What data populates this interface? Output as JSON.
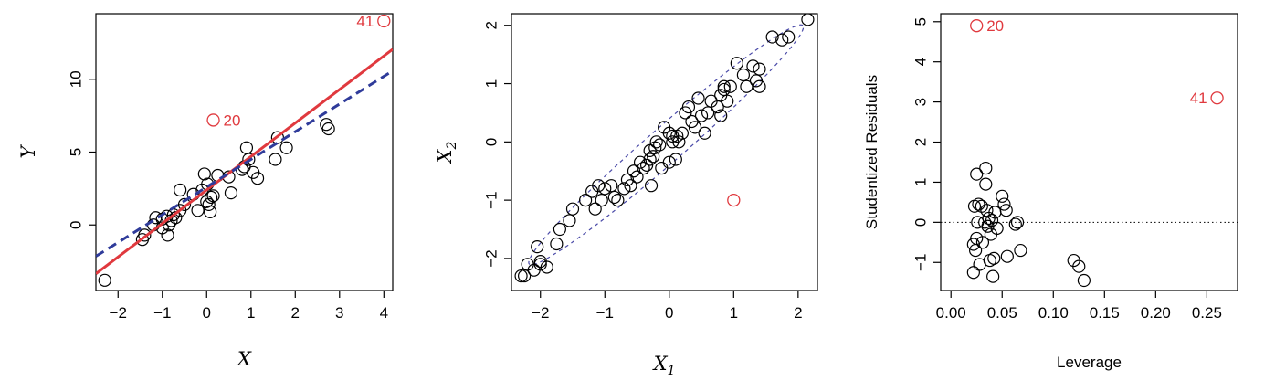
{
  "colors": {
    "points": "#000000",
    "outlier": "#e0393e",
    "fit_all": "#e0393e",
    "fit_without": "#2f3b9a",
    "ellipse": "#4a4aa8",
    "zero_line": "#000000"
  },
  "chart_data": [
    {
      "type": "scatter",
      "xlabel": "X",
      "ylabel": "Y",
      "xlim": [
        -2.5,
        4.2
      ],
      "ylim": [
        -4.5,
        14.5
      ],
      "xticks": [
        -2,
        -1,
        0,
        1,
        2,
        3,
        4
      ],
      "yticks": [
        0,
        5,
        10
      ],
      "points": [
        [
          -2.3,
          -3.8
        ],
        [
          -1.45,
          -1.0
        ],
        [
          -1.4,
          -0.7
        ],
        [
          -1.2,
          0.0
        ],
        [
          -1.15,
          0.5
        ],
        [
          -1.0,
          -0.2
        ],
        [
          -1.0,
          0.4
        ],
        [
          -0.9,
          0.6
        ],
        [
          -0.88,
          -0.7
        ],
        [
          -0.85,
          0.0
        ],
        [
          -0.8,
          0.3
        ],
        [
          -0.75,
          0.7
        ],
        [
          -0.7,
          0.5
        ],
        [
          -0.6,
          1.0
        ],
        [
          -0.6,
          2.4
        ],
        [
          -0.5,
          1.4
        ],
        [
          -0.3,
          2.1
        ],
        [
          -0.2,
          1.0
        ],
        [
          -0.1,
          2.4
        ],
        [
          -0.05,
          3.5
        ],
        [
          0.0,
          1.6
        ],
        [
          0.02,
          2.8
        ],
        [
          0.05,
          1.4
        ],
        [
          0.08,
          0.9
        ],
        [
          0.1,
          1.9
        ],
        [
          0.15,
          2.0
        ],
        [
          0.25,
          3.4
        ],
        [
          0.5,
          3.3
        ],
        [
          0.55,
          2.2
        ],
        [
          0.8,
          3.8
        ],
        [
          0.85,
          4.0
        ],
        [
          0.9,
          5.3
        ],
        [
          0.95,
          4.5
        ],
        [
          1.05,
          3.6
        ],
        [
          1.15,
          3.2
        ],
        [
          1.55,
          4.5
        ],
        [
          1.6,
          6.0
        ],
        [
          1.8,
          5.3
        ],
        [
          2.7,
          6.9
        ],
        [
          2.75,
          6.6
        ]
      ],
      "outliers": [
        {
          "label": "20",
          "x": 0.15,
          "y": 7.2
        },
        {
          "label": "41",
          "x": 4.0,
          "y": 14.0
        }
      ],
      "fit_lines": [
        {
          "style": "solid",
          "intercept": 2.4,
          "slope": 2.3
        },
        {
          "style": "dashed",
          "intercept": 2.6,
          "slope": 1.9
        }
      ]
    },
    {
      "type": "scatter",
      "xlabel": "X",
      "xlabel_sub": "1",
      "ylabel": "X",
      "ylabel_sub": "2",
      "xlim": [
        -2.45,
        2.3
      ],
      "ylim": [
        -2.55,
        2.2
      ],
      "xticks": [
        -2,
        -1,
        0,
        1,
        2
      ],
      "yticks": [
        -2,
        -1,
        0,
        1,
        2
      ],
      "points": [
        [
          -2.3,
          -2.3
        ],
        [
          -2.25,
          -2.3
        ],
        [
          -2.2,
          -2.1
        ],
        [
          -2.1,
          -2.2
        ],
        [
          -2.05,
          -1.8
        ],
        [
          -2.0,
          -2.05
        ],
        [
          -2.0,
          -2.1
        ],
        [
          -1.9,
          -2.15
        ],
        [
          -1.75,
          -1.75
        ],
        [
          -1.7,
          -1.5
        ],
        [
          -1.55,
          -1.35
        ],
        [
          -1.5,
          -1.15
        ],
        [
          -1.3,
          -1.0
        ],
        [
          -1.2,
          -0.85
        ],
        [
          -1.15,
          -1.15
        ],
        [
          -1.1,
          -0.75
        ],
        [
          -1.05,
          -1.0
        ],
        [
          -1.0,
          -0.8
        ],
        [
          -0.9,
          -0.75
        ],
        [
          -0.85,
          -0.95
        ],
        [
          -0.8,
          -1.0
        ],
        [
          -0.7,
          -0.8
        ],
        [
          -0.65,
          -0.65
        ],
        [
          -0.6,
          -0.75
        ],
        [
          -0.55,
          -0.5
        ],
        [
          -0.5,
          -0.6
        ],
        [
          -0.45,
          -0.35
        ],
        [
          -0.4,
          -0.45
        ],
        [
          -0.35,
          -0.4
        ],
        [
          -0.3,
          -0.15
        ],
        [
          -0.3,
          -0.3
        ],
        [
          -0.28,
          -0.75
        ],
        [
          -0.25,
          -0.25
        ],
        [
          -0.22,
          -0.1
        ],
        [
          -0.2,
          0.0
        ],
        [
          -0.15,
          -0.05
        ],
        [
          -0.12,
          -0.45
        ],
        [
          -0.08,
          0.25
        ],
        [
          0.0,
          -0.35
        ],
        [
          0.0,
          0.15
        ],
        [
          0.05,
          0.1
        ],
        [
          0.05,
          0.0
        ],
        [
          0.1,
          -0.3
        ],
        [
          0.12,
          0.1
        ],
        [
          0.15,
          0.0
        ],
        [
          0.2,
          0.15
        ],
        [
          0.25,
          0.5
        ],
        [
          0.3,
          0.6
        ],
        [
          0.35,
          0.35
        ],
        [
          0.4,
          0.25
        ],
        [
          0.45,
          0.75
        ],
        [
          0.5,
          0.45
        ],
        [
          0.55,
          0.15
        ],
        [
          0.6,
          0.5
        ],
        [
          0.65,
          0.7
        ],
        [
          0.75,
          0.6
        ],
        [
          0.8,
          0.8
        ],
        [
          0.8,
          0.45
        ],
        [
          0.85,
          0.9
        ],
        [
          0.85,
          0.95
        ],
        [
          0.9,
          0.7
        ],
        [
          0.95,
          0.95
        ],
        [
          1.05,
          1.35
        ],
        [
          1.15,
          1.15
        ],
        [
          1.2,
          0.95
        ],
        [
          1.3,
          1.3
        ],
        [
          1.35,
          1.05
        ],
        [
          1.4,
          1.25
        ],
        [
          1.4,
          0.95
        ],
        [
          1.6,
          1.8
        ],
        [
          1.75,
          1.75
        ],
        [
          1.85,
          1.8
        ],
        [
          2.15,
          2.1
        ]
      ],
      "outliers": [
        {
          "label": "",
          "x": 1.0,
          "y": -1.0
        }
      ],
      "ellipse": {
        "center": [
          -0.05,
          -0.05
        ],
        "dir": [
          1,
          0.965
        ],
        "half_major": 2.95,
        "half_minor": 0.29
      }
    },
    {
      "type": "scatter",
      "xlabel": "Leverage",
      "ylabel": "Studentized Residuals",
      "xlim": [
        -0.01,
        0.28
      ],
      "ylim": [
        -1.7,
        5.2
      ],
      "xticks": [
        0.0,
        0.05,
        0.1,
        0.15,
        0.2,
        0.25
      ],
      "xtick_labels": [
        "0.00",
        "0.05",
        "0.10",
        "0.15",
        "0.20",
        "0.25"
      ],
      "yticks": [
        -1,
        0,
        1,
        2,
        3,
        4,
        5
      ],
      "points": [
        [
          0.022,
          -0.55
        ],
        [
          0.022,
          -1.25
        ],
        [
          0.023,
          0.4
        ],
        [
          0.024,
          -0.7
        ],
        [
          0.025,
          1.2
        ],
        [
          0.025,
          -0.4
        ],
        [
          0.026,
          0.0
        ],
        [
          0.027,
          0.45
        ],
        [
          0.028,
          -1.05
        ],
        [
          0.03,
          0.4
        ],
        [
          0.031,
          -0.5
        ],
        [
          0.033,
          0.0
        ],
        [
          0.034,
          1.35
        ],
        [
          0.034,
          0.95
        ],
        [
          0.035,
          0.3
        ],
        [
          0.036,
          -0.1
        ],
        [
          0.037,
          0.1
        ],
        [
          0.038,
          -0.95
        ],
        [
          0.039,
          -0.3
        ],
        [
          0.04,
          0.05
        ],
        [
          0.041,
          -1.35
        ],
        [
          0.042,
          -0.9
        ],
        [
          0.043,
          0.25
        ],
        [
          0.045,
          -0.15
        ],
        [
          0.05,
          0.65
        ],
        [
          0.052,
          0.45
        ],
        [
          0.054,
          0.3
        ],
        [
          0.055,
          -0.85
        ],
        [
          0.063,
          -0.05
        ],
        [
          0.065,
          0.0
        ],
        [
          0.068,
          -0.7
        ],
        [
          0.12,
          -0.95
        ],
        [
          0.125,
          -1.1
        ],
        [
          0.13,
          -1.45
        ]
      ],
      "outliers": [
        {
          "label": "20",
          "x": 0.025,
          "y": 4.9
        },
        {
          "label": "41",
          "x": 0.26,
          "y": 3.1
        }
      ],
      "hline": 0
    }
  ]
}
